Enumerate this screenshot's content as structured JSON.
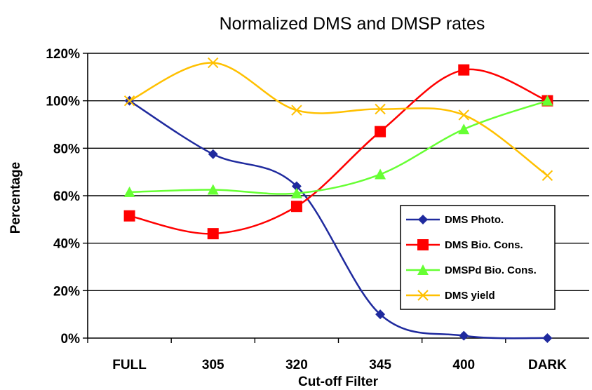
{
  "chart_data": {
    "type": "line",
    "title": "Normalized DMS and DMSP rates",
    "xlabel": "Cut-off Filter",
    "ylabel": "Percentage",
    "categories": [
      "FULL",
      "305",
      "320",
      "345",
      "400",
      "DARK"
    ],
    "y_ticks": [
      "0%",
      "20%",
      "40%",
      "60%",
      "80%",
      "100%",
      "120%"
    ],
    "ylim": [
      0,
      120
    ],
    "grid": "horizontal",
    "legend_position": "right",
    "series": [
      {
        "name": "DMS Photo.",
        "color": "#1f2a9e",
        "marker": "diamond",
        "values": [
          100,
          77.5,
          64,
          10,
          1,
          0
        ]
      },
      {
        "name": "DMS Bio. Cons.",
        "color": "#ff0000",
        "marker": "square",
        "values": [
          51.5,
          44,
          55.5,
          87,
          113,
          100
        ]
      },
      {
        "name": "DMSPd Bio. Cons.",
        "color": "#66ff33",
        "marker": "triangle",
        "values": [
          61.5,
          62.5,
          61,
          69,
          88,
          100
        ]
      },
      {
        "name": "DMS yield",
        "color": "#ffc000",
        "marker": "x",
        "values": [
          100,
          116,
          96,
          96.5,
          94,
          68.5
        ]
      }
    ]
  }
}
